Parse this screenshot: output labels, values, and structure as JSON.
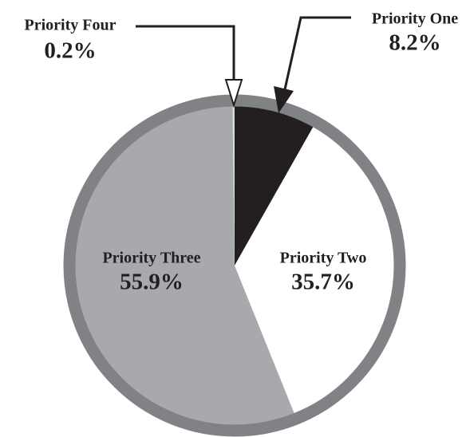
{
  "chart_data": {
    "type": "pie",
    "labels": [
      "Priority One",
      "Priority Two",
      "Priority Three",
      "Priority Four"
    ],
    "values": [
      8.2,
      35.7,
      55.9,
      0.2
    ],
    "value_labels": [
      "8.2%",
      "35.7%",
      "55.9%",
      "0.2%"
    ],
    "colors": [
      "#231f20",
      "#ffffff",
      "#a7a9ac",
      "#d9dadb"
    ]
  }
}
